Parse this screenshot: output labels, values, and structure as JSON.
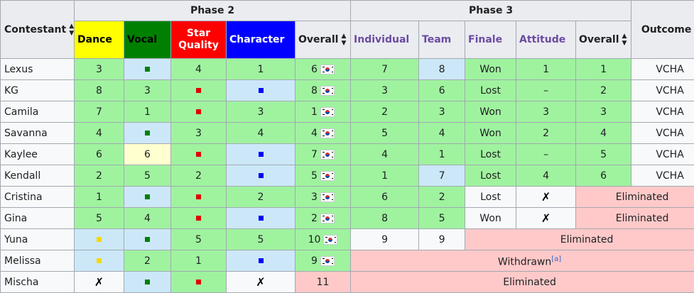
{
  "headers": {
    "contestant": "Contestant",
    "phase2": "Phase 2",
    "phase3": "Phase 3",
    "outcome": "Outcome",
    "dance": "Dance",
    "vocal": "Vocal",
    "star_quality_1": "Star",
    "star_quality_2": "Quality",
    "character": "Character",
    "overall_p2": "Overall",
    "individual": "Individual",
    "team": "Team",
    "finale": "Finale",
    "attitude": "Attitude",
    "overall_p3": "Overall"
  },
  "icons": {
    "sort": "sort-arrows-icon",
    "flag": "south-korea-flag-icon",
    "square": "square-marker-icon",
    "cross": "cross-mark-icon"
  },
  "colors": {
    "green": "#9ff39f",
    "light_blue": "#cce8f8",
    "light_yellow": "#ffffd0",
    "pink": "#ffc9c9",
    "dance": "#ffff00",
    "vocal": "#008000",
    "star_quality": "#ff0000",
    "character": "#0000ff"
  },
  "glyphs": {
    "cross": "✗"
  },
  "footnote": "[a]",
  "rows": [
    {
      "name": "Lexus",
      "dance": "3",
      "vocal": "",
      "star": "4",
      "character": "1",
      "overall2": "6",
      "individual": "7",
      "team": "8",
      "finale": "Won",
      "attitude": "1",
      "overall3": "1",
      "outcome": "VCHA"
    },
    {
      "name": "KG",
      "dance": "8",
      "vocal": "3",
      "star": "",
      "character": "",
      "overall2": "8",
      "individual": "3",
      "team": "6",
      "finale": "Lost",
      "attitude": "–",
      "overall3": "2",
      "outcome": "VCHA"
    },
    {
      "name": "Camila",
      "dance": "7",
      "vocal": "1",
      "star": "",
      "character": "3",
      "overall2": "1",
      "individual": "2",
      "team": "3",
      "finale": "Won",
      "attitude": "3",
      "overall3": "3",
      "outcome": "VCHA"
    },
    {
      "name": "Savanna",
      "dance": "4",
      "vocal": "",
      "star": "3",
      "character": "4",
      "overall2": "4",
      "individual": "5",
      "team": "4",
      "finale": "Won",
      "attitude": "2",
      "overall3": "4",
      "outcome": "VCHA"
    },
    {
      "name": "Kaylee",
      "dance": "6",
      "vocal": "6",
      "star": "",
      "character": "",
      "overall2": "7",
      "individual": "4",
      "team": "1",
      "finale": "Lost",
      "attitude": "–",
      "overall3": "5",
      "outcome": "VCHA"
    },
    {
      "name": "Kendall",
      "dance": "2",
      "vocal": "5",
      "star": "2",
      "character": "",
      "overall2": "5",
      "individual": "1",
      "team": "7",
      "finale": "Lost",
      "attitude": "4",
      "overall3": "6",
      "outcome": "VCHA"
    },
    {
      "name": "Cristina",
      "dance": "1",
      "vocal": "",
      "star": "",
      "character": "2",
      "overall2": "3",
      "individual": "6",
      "team": "2",
      "finale": "Lost",
      "attitude": "",
      "outcome": "Eliminated"
    },
    {
      "name": "Gina",
      "dance": "5",
      "vocal": "4",
      "star": "",
      "character": "",
      "overall2": "2",
      "individual": "8",
      "team": "5",
      "finale": "Won",
      "attitude": "",
      "outcome": "Eliminated"
    },
    {
      "name": "Yuna",
      "dance": "",
      "vocal": "",
      "star": "5",
      "character": "5",
      "overall2": "10",
      "individual": "9",
      "team": "9",
      "outcome": "Eliminated"
    },
    {
      "name": "Melissa",
      "dance": "",
      "vocal": "2",
      "star": "1",
      "character": "",
      "overall2": "9",
      "outcome": "Withdrawn"
    },
    {
      "name": "Mischa",
      "dance": "",
      "vocal": "",
      "star": "",
      "character": "",
      "overall2": "11",
      "outcome": "Eliminated"
    }
  ]
}
